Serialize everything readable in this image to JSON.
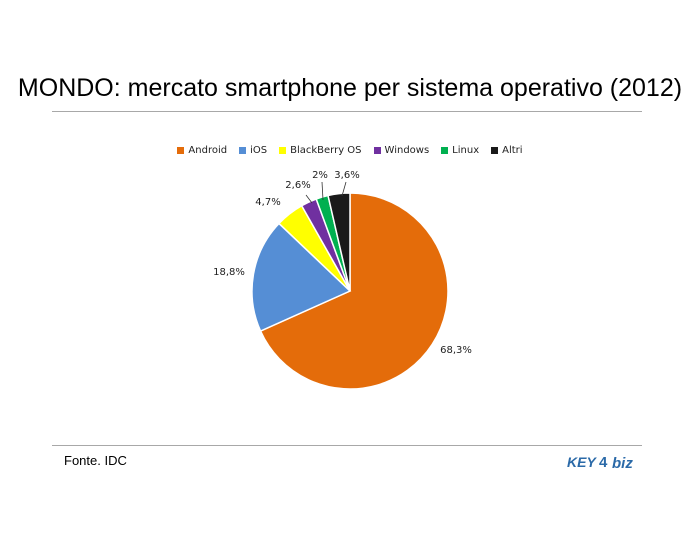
{
  "title": "MONDO: mercato smartphone per sistema operativo (2012)",
  "source": "Fonte. IDC",
  "logo": {
    "part1": "KEY",
    "part2": "4",
    "part3": "biz"
  },
  "chart_data": {
    "type": "pie",
    "title": "MONDO: mercato smartphone per sistema operativo (2012)",
    "legend_position": "top",
    "categories": [
      "Android",
      "iOS",
      "BlackBerry OS",
      "Windows",
      "Linux",
      "Altri"
    ],
    "values": [
      68.3,
      18.8,
      4.7,
      2.6,
      2.0,
      3.6
    ],
    "labels": [
      "68,3%",
      "18,8%",
      "4,7%",
      "2,6%",
      "2%",
      "3,6%"
    ],
    "colors": [
      "#e46c0a",
      "#558ed5",
      "#ffff00",
      "#7030a0",
      "#00b050",
      "#1a1a1a"
    ],
    "unit": "%"
  }
}
